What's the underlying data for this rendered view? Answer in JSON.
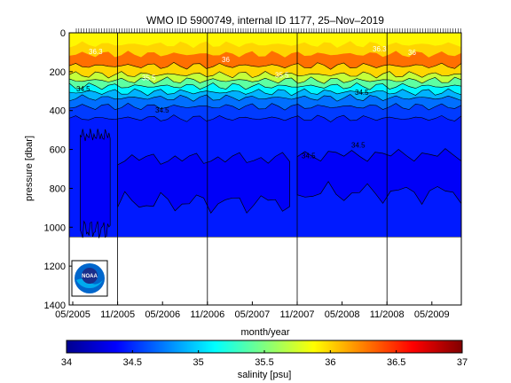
{
  "chart_data": {
    "type": "heatmap",
    "title": "WMO ID 5900749, internal ID 1177, 25–Nov–2019",
    "xlabel": "month/year",
    "ylabel": "pressure [dbar]",
    "x_ticks": [
      "05/2005",
      "11/2005",
      "05/2006",
      "11/2006",
      "05/2007",
      "11/2007",
      "05/2008",
      "11/2008",
      "05/2009"
    ],
    "y_ticks": [
      0,
      200,
      400,
      600,
      800,
      1000,
      1200,
      1400
    ],
    "ylim": [
      0,
      1400
    ],
    "y_reversed": true,
    "colorbar": {
      "label": "salinity [psu]",
      "range": [
        34,
        37
      ],
      "ticks": [
        34,
        34.5,
        35,
        35.5,
        36,
        36.5,
        37
      ],
      "colormap": "jet"
    },
    "layers": [
      {
        "pressure_top": 0,
        "pressure_bottom": 60,
        "salinity": 35.9
      },
      {
        "pressure_top": 60,
        "pressure_bottom": 110,
        "salinity": 36.0
      },
      {
        "pressure_top": 110,
        "pressure_bottom": 170,
        "salinity": 36.3
      },
      {
        "pressure_top": 170,
        "pressure_bottom": 215,
        "salinity": 36.0
      },
      {
        "pressure_top": 215,
        "pressure_bottom": 245,
        "salinity": 35.7
      },
      {
        "pressure_top": 245,
        "pressure_bottom": 275,
        "salinity": 35.4
      },
      {
        "pressure_top": 275,
        "pressure_bottom": 305,
        "salinity": 35.1
      },
      {
        "pressure_top": 305,
        "pressure_bottom": 335,
        "salinity": 34.9
      },
      {
        "pressure_top": 335,
        "pressure_bottom": 380,
        "salinity": 34.7
      },
      {
        "pressure_top": 380,
        "pressure_bottom": 440,
        "salinity": 34.55
      },
      {
        "pressure_top": 440,
        "pressure_bottom": 1050,
        "salinity": 34.45
      }
    ],
    "deep_fresh_patches": [
      {
        "from": "06/2005",
        "to": "10/2005",
        "pressure_top": 500,
        "pressure_bottom": 1040,
        "salinity": 34.35
      },
      {
        "from": "11/2005",
        "to": "10/2007",
        "pressure_top": 620,
        "pressure_bottom": 900,
        "salinity": 34.35
      },
      {
        "from": "11/2007",
        "to": "12/2009",
        "pressure_top": 600,
        "pressure_bottom": 850,
        "salinity": 34.35
      }
    ],
    "profile_depth_max": 1050,
    "contour_labels": [
      "34.5",
      "34.5",
      "34.5",
      "34.5",
      "34.5",
      "35.5",
      "35.5",
      "36",
      "36",
      "36.3",
      "36.3"
    ],
    "vertical_markers": [
      "11/2005",
      "11/2006",
      "11/2007",
      "11/2008"
    ],
    "logo": {
      "text": "NOAA"
    }
  }
}
